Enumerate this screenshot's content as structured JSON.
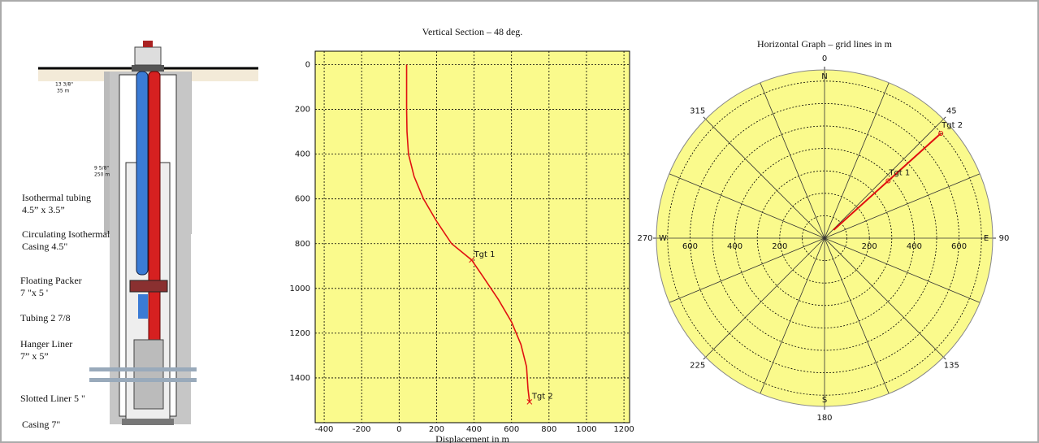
{
  "diagram": {
    "labels": [
      "13 3/8\"",
      "35 m",
      "9 5/8\"",
      "250 m",
      "Isothermal tubing",
      "4.5” x 3.5”",
      "Circulating Isothermal",
      "Casing 4.5\"",
      "Floating Packer",
      "7 \"x 5 '",
      "Tubing 2 7/8",
      "Hanger Liner",
      "7” x 5”",
      "Slotted Liner 5 \"",
      "Casing 7\""
    ]
  },
  "chart_data": [
    {
      "type": "line",
      "title": "Vertical Section – 48 deg.",
      "x_label": "Displacement in m",
      "x": [
        40,
        40,
        42,
        50,
        80,
        130,
        200,
        280,
        387,
        450,
        530,
        600,
        650,
        680,
        688,
        696
      ],
      "values": [
        0,
        200,
        300,
        400,
        500,
        600,
        700,
        800,
        873,
        950,
        1050,
        1150,
        1250,
        1350,
        1450,
        1507
      ],
      "color": "#e01010",
      "xlim": [
        -448,
        1230
      ],
      "xticks": [
        -400,
        -200,
        0,
        200,
        400,
        600,
        800,
        1000,
        1200
      ],
      "ylim": [
        1600,
        -60
      ],
      "yticks": [
        0,
        200,
        400,
        600,
        800,
        1000,
        1200,
        1400
      ],
      "grid": true,
      "background": "#fafa8c",
      "annotations": [
        {
          "text": "Tgt 1",
          "x": 387,
          "y": 873
        },
        {
          "text": "Tgt 2",
          "x": 696,
          "y": 1507
        }
      ]
    },
    {
      "type": "polar",
      "title": "Horizontal Graph – grid lines in m",
      "theta": [
        48,
        48,
        48
      ],
      "r": [
        55,
        382,
        698
      ],
      "color": "#e01010",
      "rlim": [
        0,
        750
      ],
      "rgrid": [
        100,
        200,
        300,
        400,
        500,
        600,
        700
      ],
      "rticks": [
        200,
        400,
        600
      ],
      "thetaticks": [
        0,
        45,
        90,
        135,
        180,
        225,
        270,
        315
      ],
      "directions": [
        "N",
        "E",
        "S",
        "W"
      ],
      "background": "#fafa8c",
      "annotations": [
        {
          "text": "Tgt 1",
          "theta": 48,
          "r": 382
        },
        {
          "text": "Tgt 2",
          "theta": 48,
          "r": 698
        }
      ]
    }
  ]
}
